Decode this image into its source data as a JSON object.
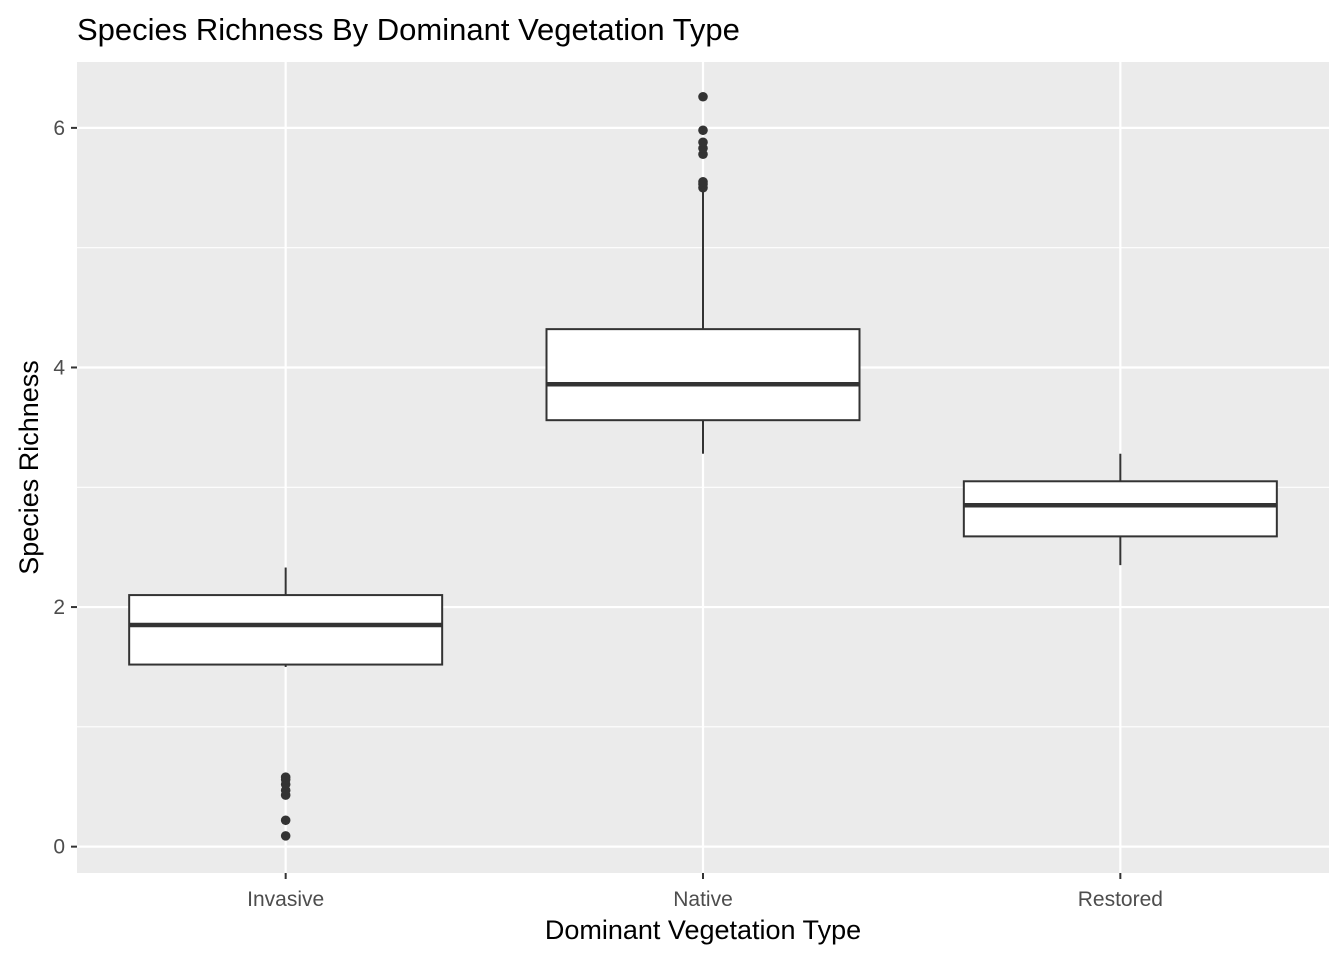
{
  "chart_data": {
    "type": "box",
    "title": "Species Richness By Dominant Vegetation Type",
    "xlabel": "Dominant Vegetation Type",
    "ylabel": "Species Richness",
    "ylim": [
      -0.22,
      6.55
    ],
    "y_ticks": [
      0,
      2,
      4,
      6
    ],
    "y_minor_ticks": [
      1,
      3,
      5
    ],
    "grid": true,
    "background": "#ebebeb",
    "grid_color": "#ffffff",
    "box_fill": "#ffffff",
    "box_stroke": "#333333",
    "categories": [
      "Invasive",
      "Native",
      "Restored"
    ],
    "boxes": [
      {
        "category": "Invasive",
        "whisker_low": 1.5,
        "q1": 1.52,
        "median": 1.85,
        "q3": 2.1,
        "whisker_high": 2.33,
        "outliers": [
          0.09,
          0.22,
          0.43,
          0.47,
          0.52,
          0.56,
          0.58
        ]
      },
      {
        "category": "Native",
        "whisker_low": 3.28,
        "q1": 3.56,
        "median": 3.86,
        "q3": 4.32,
        "whisker_high": 5.47,
        "outliers": [
          5.5,
          5.53,
          5.55,
          5.78,
          5.83,
          5.88,
          5.98,
          6.26
        ]
      },
      {
        "category": "Restored",
        "whisker_low": 2.35,
        "q1": 2.59,
        "median": 2.85,
        "q3": 3.05,
        "whisker_high": 3.28,
        "outliers": []
      }
    ]
  }
}
